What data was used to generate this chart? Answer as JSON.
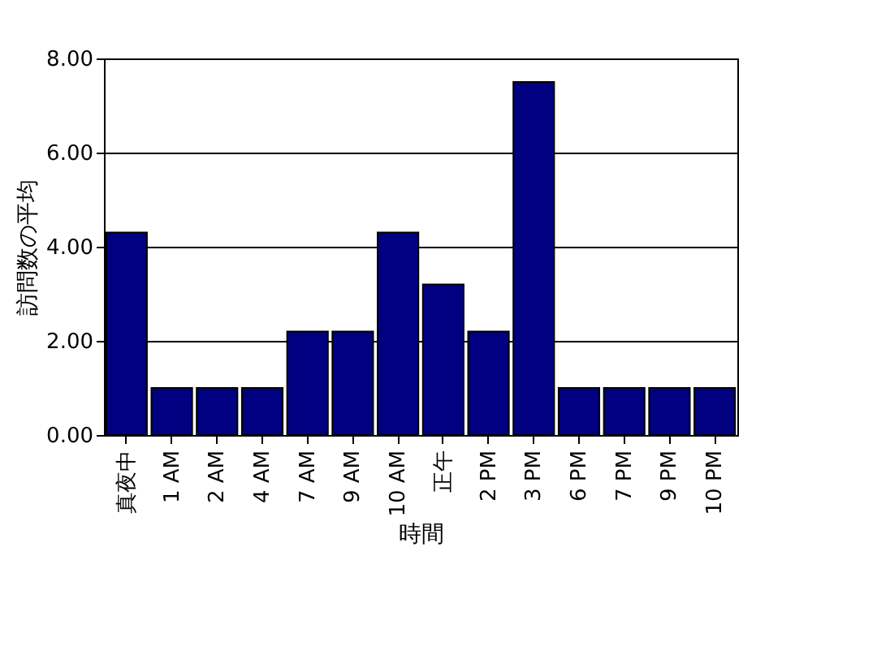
{
  "chart_data": {
    "type": "bar",
    "xlabel": "時間",
    "ylabel": "訪問数の平均",
    "categories": [
      "真夜中",
      "1 AM",
      "2 AM",
      "4 AM",
      "7 AM",
      "9 AM",
      "10 AM",
      "正午",
      "2 PM",
      "3 PM",
      "6 PM",
      "7 PM",
      "9 PM",
      "10 PM"
    ],
    "values": [
      4.3,
      1.0,
      1.0,
      1.0,
      2.2,
      2.2,
      4.3,
      3.2,
      2.2,
      7.5,
      1.0,
      1.0,
      1.0,
      1.0
    ],
    "color": "#000080",
    "ylim": [
      0,
      8
    ],
    "yticks": [
      {
        "value": 0,
        "label": "0.00"
      },
      {
        "value": 2,
        "label": "2.00"
      },
      {
        "value": 4,
        "label": "4.00"
      },
      {
        "value": 6,
        "label": "6.00"
      },
      {
        "value": 8,
        "label": "8.00"
      }
    ],
    "grid": "y"
  }
}
